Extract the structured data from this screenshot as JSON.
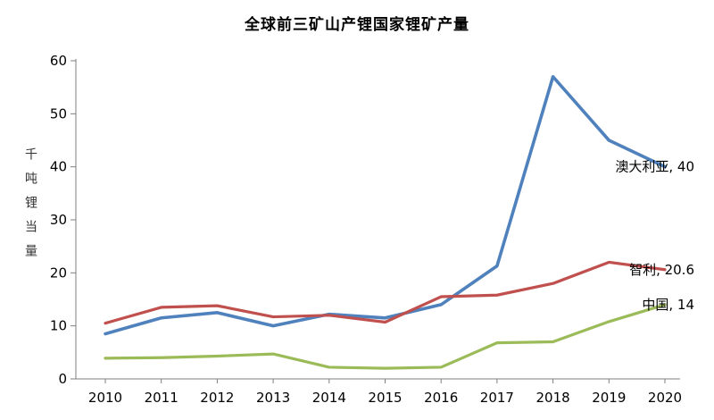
{
  "chart_data": {
    "type": "line",
    "title": "全球前三矿山产锂国家锂矿产量",
    "ylabel": "千吨锂当量",
    "xlabel": "",
    "ylim": [
      0,
      60
    ],
    "yticks": [
      0,
      10,
      20,
      30,
      40,
      50,
      60
    ],
    "categories": [
      "2010",
      "2011",
      "2012",
      "2013",
      "2014",
      "2015",
      "2016",
      "2017",
      "2018",
      "2019",
      "2020"
    ],
    "grid": false,
    "legend_position": "end-of-line-labels",
    "axis_color": "#7f7f7f",
    "text_color": "#000000",
    "background_color": "#ffffff",
    "series": [
      {
        "name": "澳大利亚",
        "end_label": "澳大利亚, 40",
        "color": "#4F81BD",
        "values": [
          8.5,
          11.5,
          12.5,
          10,
          12.2,
          11.5,
          14,
          21.3,
          57,
          45,
          40
        ]
      },
      {
        "name": "智利",
        "end_label": "智利, 20.6",
        "color": "#C0504D",
        "values": [
          10.5,
          13.5,
          13.8,
          11.7,
          12,
          10.7,
          15.5,
          15.8,
          18,
          22,
          20.6
        ]
      },
      {
        "name": "中国",
        "end_label": "中国, 14",
        "color": "#9BBB59",
        "values": [
          3.9,
          4,
          4.3,
          4.7,
          2.2,
          2,
          2.2,
          6.8,
          7,
          10.8,
          14
        ]
      }
    ]
  }
}
